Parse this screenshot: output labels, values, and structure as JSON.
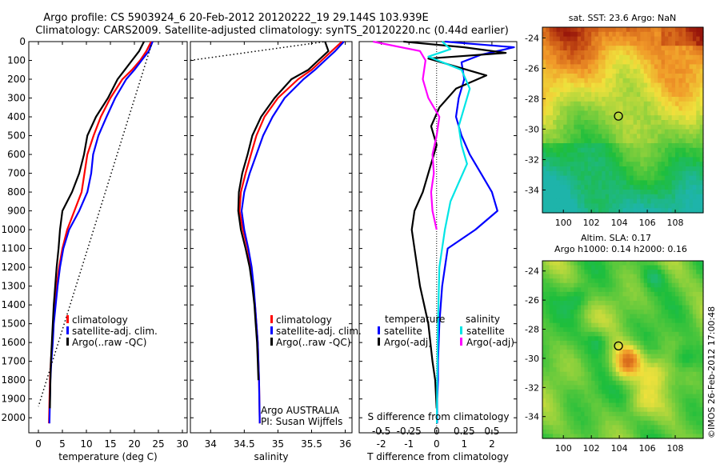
{
  "header": {
    "title_line1": "Argo profile: CS 5903924_6 20-Feb-2012 20120222_19 29.144S 103.939E",
    "title_line2": "Climatology: CARS2009. Satellite-adjusted climatology: synTS_20120220.nc (0.44d earlier)"
  },
  "colors": {
    "climatology": "#ff0000",
    "satellite": "#0000ff",
    "argo": "#000000",
    "sal_satellite": "#00e5e5",
    "sal_argo": "#ff00ff"
  },
  "chart_data": [
    {
      "id": "temperature",
      "type": "line",
      "xlabel": "temperature (deg C)",
      "xlim": [
        -2,
        31
      ],
      "xticks": [
        0,
        5,
        10,
        15,
        20,
        25,
        30
      ],
      "ylim": [
        2080,
        0
      ],
      "yticks": [
        0,
        100,
        200,
        300,
        400,
        500,
        600,
        700,
        800,
        900,
        1000,
        1100,
        1200,
        1300,
        1400,
        1500,
        1600,
        1700,
        1800,
        1900,
        2000
      ],
      "legend": [
        "climatology",
        "satellite-adj. clim.",
        "Argo(..raw -QC)"
      ],
      "series": [
        {
          "name": "climatology",
          "color": "#ff0000",
          "x": [
            23.5,
            22.5,
            21.2,
            19.5,
            17.5,
            15.0,
            13.0,
            11.5,
            10.2,
            9.6,
            9.0,
            7.5,
            6.0,
            5.0,
            4.3,
            3.8,
            3.5,
            3.1,
            2.9,
            2.6,
            2.4,
            2.2
          ],
          "y": [
            0,
            50,
            100,
            150,
            200,
            300,
            400,
            500,
            600,
            700,
            800,
            900,
            1000,
            1100,
            1200,
            1300,
            1400,
            1500,
            1600,
            1700,
            1800,
            2030
          ]
        },
        {
          "name": "satellite-adj. clim.",
          "color": "#0000ff",
          "x": [
            23.8,
            23.0,
            21.5,
            20.0,
            18.3,
            16.0,
            14.2,
            12.5,
            11.4,
            11.0,
            10.2,
            8.5,
            6.4,
            5.2,
            4.5,
            4.0,
            3.6,
            3.2,
            3.0,
            2.7,
            2.5,
            2.3
          ],
          "y": [
            0,
            50,
            100,
            150,
            200,
            300,
            400,
            500,
            600,
            700,
            800,
            900,
            1000,
            1100,
            1200,
            1300,
            1400,
            1500,
            1600,
            1700,
            1800,
            2030
          ]
        },
        {
          "name": "Argo(..raw -QC)",
          "color": "#000000",
          "x": [
            22.0,
            21.0,
            19.5,
            18.0,
            16.5,
            14.5,
            12.0,
            10.2,
            9.5,
            8.5,
            7.0,
            5.0,
            4.5,
            4.2,
            3.8,
            3.5,
            3.2,
            3.0,
            2.8,
            2.6,
            2.5,
            2.4
          ],
          "y": [
            0,
            50,
            100,
            150,
            200,
            300,
            400,
            500,
            600,
            700,
            800,
            900,
            1000,
            1100,
            1200,
            1300,
            1400,
            1500,
            1600,
            1700,
            1800,
            1950
          ]
        },
        {
          "name": "dotted",
          "color": "#000000",
          "dash": true,
          "x": [
            23.5,
            0.0
          ],
          "y": [
            20,
            1940
          ]
        }
      ]
    },
    {
      "id": "salinity",
      "type": "line",
      "xlabel": "salinity",
      "xlim": [
        33.7,
        36.1
      ],
      "xticks": [
        34,
        34.5,
        35,
        35.5,
        36
      ],
      "ylim": [
        2080,
        0
      ],
      "legend": [
        "climatology",
        "satellite-adj. clim.",
        "Argo(..raw -QC)"
      ],
      "annotation": [
        "Argo AUSTRALIA",
        "PI: Susan Wijffels"
      ],
      "series": [
        {
          "name": "climatology",
          "color": "#ff0000",
          "x": [
            35.95,
            35.8,
            35.65,
            35.5,
            35.3,
            35.0,
            34.8,
            34.68,
            34.6,
            34.52,
            34.45,
            34.43,
            34.48,
            34.55,
            34.6,
            34.63,
            34.66,
            34.68,
            34.7,
            34.71,
            34.72,
            34.73
          ],
          "y": [
            0,
            50,
            100,
            150,
            200,
            300,
            400,
            500,
            600,
            700,
            800,
            900,
            1000,
            1100,
            1200,
            1300,
            1400,
            1500,
            1600,
            1700,
            1800,
            2030
          ]
        },
        {
          "name": "satellite-adj. clim.",
          "color": "#0000ff",
          "x": [
            35.98,
            35.85,
            35.7,
            35.55,
            35.38,
            35.1,
            34.92,
            34.78,
            34.68,
            34.58,
            34.5,
            34.46,
            34.5,
            34.56,
            34.61,
            34.64,
            34.66,
            34.68,
            34.7,
            34.71,
            34.72,
            34.73
          ],
          "y": [
            0,
            50,
            100,
            150,
            200,
            300,
            400,
            500,
            600,
            700,
            800,
            900,
            1000,
            1100,
            1200,
            1300,
            1400,
            1500,
            1600,
            1700,
            1800,
            2030
          ]
        },
        {
          "name": "Argo(..raw -QC)",
          "color": "#000000",
          "x": [
            35.7,
            35.75,
            35.6,
            35.45,
            35.2,
            34.95,
            34.75,
            34.62,
            34.55,
            34.47,
            34.42,
            34.41,
            34.45,
            34.52,
            34.58,
            34.62,
            34.65,
            34.67,
            34.69,
            34.7,
            34.71
          ],
          "y": [
            0,
            50,
            100,
            150,
            200,
            300,
            400,
            500,
            600,
            700,
            800,
            900,
            1000,
            1100,
            1200,
            1300,
            1400,
            1500,
            1600,
            1700,
            1800
          ]
        },
        {
          "name": "dotted",
          "color": "#000000",
          "dash": true,
          "x": [
            33.7,
            35.7
          ],
          "y": [
            100,
            0
          ]
        }
      ]
    },
    {
      "id": "difference",
      "type": "line",
      "xlabel": "T difference from climatology",
      "xlabel_top": "S difference from climatology",
      "xlim": [
        -2.8,
        2.9
      ],
      "xticks": [
        -2,
        -1,
        0,
        1,
        2
      ],
      "xticks_top": [
        "-0.5",
        "-0.25",
        "0",
        "0.25",
        "0.5"
      ],
      "xticks_top_pos": [
        -2,
        -1,
        0,
        1,
        2
      ],
      "ylim": [
        2080,
        0
      ],
      "legend_temperature_title": "temperature",
      "legend_salinity_title": "salinity",
      "legend_temperature": [
        "satellite",
        "Argo(-adj)"
      ],
      "legend_salinity": [
        "satellite",
        "Argo(-adj)"
      ],
      "series": [
        {
          "name": "T satellite",
          "color": "#0000ff",
          "x": [
            0.3,
            2.8,
            1.6,
            0.9,
            1.0,
            0.8,
            0.7,
            0.9,
            1.2,
            1.6,
            2.0,
            2.2,
            1.4,
            0.4,
            0.2,
            0.1,
            0.05,
            0.05,
            0.02,
            0.02
          ],
          "y": [
            0,
            30,
            70,
            110,
            200,
            300,
            400,
            500,
            600,
            700,
            800,
            900,
            1000,
            1100,
            1300,
            1500,
            1700,
            1800,
            1900,
            2030
          ]
        },
        {
          "name": "T Argo(-adj)",
          "color": "#000000",
          "x": [
            -1.2,
            1.0,
            2.5,
            -0.3,
            1.8,
            0.7,
            0.1,
            -0.2,
            0.0,
            -0.3,
            -0.5,
            -0.8,
            -0.9,
            -0.8,
            -0.6,
            -0.3,
            -0.15,
            -0.05,
            0.0
          ],
          "y": [
            0,
            30,
            60,
            90,
            180,
            250,
            350,
            450,
            550,
            700,
            800,
            900,
            1000,
            1100,
            1300,
            1500,
            1700,
            1800,
            1950
          ]
        },
        {
          "name": "S satellite",
          "color": "#00e5e5",
          "x": [
            0.2,
            0.5,
            -0.3,
            0.9,
            1.2,
            1.0,
            0.8,
            0.9,
            1.1,
            0.8,
            0.5,
            0.3,
            0.1,
            0.05,
            0.02,
            0.01
          ],
          "y": [
            0,
            40,
            80,
            150,
            250,
            350,
            450,
            550,
            650,
            750,
            850,
            1000,
            1200,
            1500,
            1800,
            2030
          ]
        },
        {
          "name": "S Argo(-adj)",
          "color": "#ff00ff",
          "x": [
            -2.3,
            -0.6,
            -0.4,
            -0.5,
            -0.3,
            0.1,
            0.0,
            -0.15,
            -0.1,
            -0.2,
            -0.15,
            0.0
          ],
          "y": [
            0,
            50,
            100,
            200,
            300,
            400,
            500,
            600,
            700,
            800,
            900,
            1000
          ]
        }
      ]
    }
  ],
  "maps": [
    {
      "id": "sst",
      "title": "sat. SST: 23.6  Argo: NaN",
      "xticks": [
        "100",
        "102",
        "104",
        "106",
        "108"
      ],
      "yticks": [
        "-24",
        "-26",
        "-28",
        "-30",
        "-32",
        "-34"
      ]
    },
    {
      "id": "sla",
      "title_line1": "Altim. SLA: 0.17",
      "title_line2": "Argo h1000: 0.14  h2000: 0.16",
      "xticks": [
        "100",
        "102",
        "104",
        "106",
        "108"
      ],
      "yticks": [
        "-24",
        "-26",
        "-28",
        "-30",
        "-32",
        "-34"
      ]
    }
  ],
  "credit": "©IMOS 26-Feb-2012 17:00:48"
}
